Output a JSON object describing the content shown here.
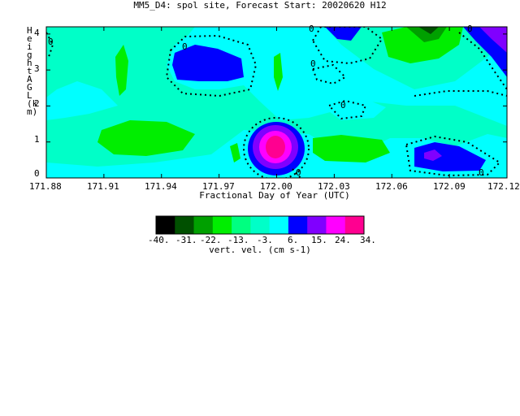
{
  "title": "MM5_D4: spol site,  Forecast Start: 20020620 H12",
  "chart_data": {
    "type": "heatmap",
    "subtype": "filled-contour",
    "title": "MM5_D4: spol site,  Forecast Start: 20020620 H12",
    "xlabel": "Fractional Day of Year (UTC)",
    "ylabel": "Height AGL (km)",
    "xlim": [
      171.88,
      172.12
    ],
    "ylim": [
      0,
      4.2
    ],
    "x_ticks": [
      "171.88",
      "171.91",
      "171.94",
      "171.97",
      "172.00",
      "172.03",
      "172.06",
      "172.09",
      "172.12"
    ],
    "y_ticks": [
      "0",
      "1",
      "2",
      "3",
      "4"
    ],
    "contour_labels": [
      "0",
      "0",
      "0",
      "0",
      "0",
      "0",
      "0",
      "0"
    ],
    "colorbar": {
      "label": "vert. vel. (cm s-1)",
      "tick_labels": [
        "-40.",
        "-31.",
        "-22.",
        "-13.",
        "-3.",
        "6.",
        "15.",
        "24.",
        "34."
      ],
      "levels": [
        -40,
        -31,
        -22,
        -13,
        -3,
        6,
        15,
        24,
        34
      ],
      "colors": [
        "#000000",
        "#005000",
        "#00a000",
        "#00ee00",
        "#00ff80",
        "#00ffc8",
        "#00ffff",
        "#0000ff",
        "#8000ff",
        "#ff00ff",
        "#ff0090"
      ]
    },
    "features": [
      {
        "desc": "updraft core",
        "x": 172.0,
        "y": 0.7,
        "max_value": 34
      },
      {
        "desc": "updraft",
        "x": 172.085,
        "y": 0.5,
        "max_value": 15
      },
      {
        "desc": "updraft",
        "x": 171.955,
        "y": 3.2,
        "max_value": 10
      },
      {
        "desc": "updraft",
        "x": 172.04,
        "y": 4.0,
        "max_value": 8
      },
      {
        "desc": "updraft",
        "x": 172.115,
        "y": 3.9,
        "max_value": 20
      },
      {
        "desc": "downdraft",
        "x": 172.08,
        "y": 4.0,
        "max_value": -30
      }
    ]
  }
}
